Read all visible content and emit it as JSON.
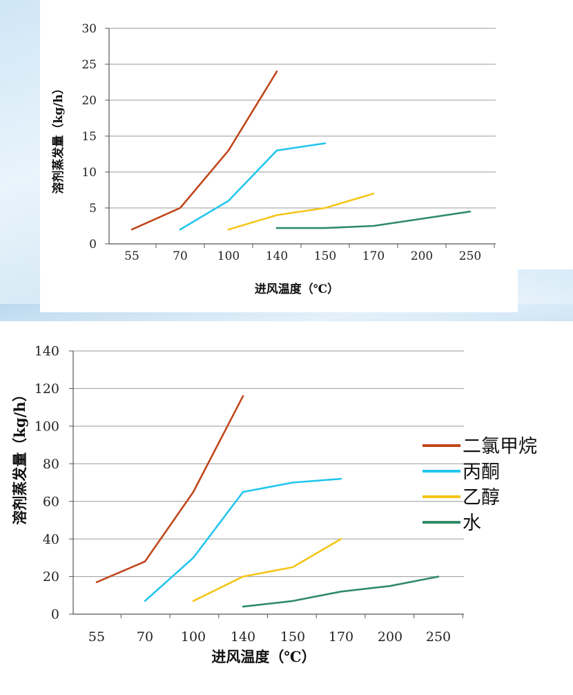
{
  "colors": {
    "background_light": "#e3f0fa",
    "background_stripe": "#c7e0f3",
    "gridline": "#9a9a9a",
    "axis": "#555555"
  },
  "chart_data": [
    {
      "type": "line",
      "categories": [
        "55",
        "70",
        "100",
        "140",
        "150",
        "170",
        "200",
        "250"
      ],
      "xlabel": "进风温度（℃）",
      "ylabel": "溶剂蒸发量（kg/h）",
      "ylim": [
        0,
        30
      ],
      "yticks": [
        0,
        5,
        10,
        15,
        20,
        25,
        30
      ],
      "grid": true,
      "legend": null,
      "series": [
        {
          "name": "二氯甲烷",
          "color": "#c0461a",
          "points": [
            [
              0,
              2
            ],
            [
              1,
              5
            ],
            [
              2,
              13
            ],
            [
              3,
              24
            ]
          ]
        },
        {
          "name": "丙酮",
          "color": "#22c5ee",
          "points": [
            [
              1,
              2
            ],
            [
              2,
              6
            ],
            [
              3,
              13
            ],
            [
              4,
              14
            ]
          ]
        },
        {
          "name": "乙醇",
          "color": "#f5c518",
          "points": [
            [
              2,
              2
            ],
            [
              3,
              4
            ],
            [
              4,
              5
            ],
            [
              5,
              7
            ]
          ]
        },
        {
          "name": "水",
          "color": "#2e8b67",
          "points": [
            [
              3,
              2.2
            ],
            [
              4,
              2.2
            ],
            [
              5,
              2.5
            ],
            [
              7,
              4.5
            ]
          ]
        }
      ]
    },
    {
      "type": "line",
      "categories": [
        "55",
        "70",
        "100",
        "140",
        "150",
        "170",
        "200",
        "250"
      ],
      "xlabel": "进风温度（℃）",
      "ylabel": "溶剂蒸发量（kg/h）",
      "ylim": [
        0,
        140
      ],
      "yticks": [
        0,
        20,
        40,
        60,
        80,
        100,
        120,
        140
      ],
      "grid": true,
      "legend": "right",
      "series": [
        {
          "name": "二氯甲烷",
          "color": "#c0461a",
          "points": [
            [
              0,
              17
            ],
            [
              1,
              28
            ],
            [
              2,
              65
            ],
            [
              3,
              116
            ]
          ]
        },
        {
          "name": "丙酮",
          "color": "#22c5ee",
          "points": [
            [
              1,
              7
            ],
            [
              2,
              30
            ],
            [
              3,
              65
            ],
            [
              4,
              70
            ],
            [
              5,
              72
            ]
          ]
        },
        {
          "name": "乙醇",
          "color": "#f5c518",
          "points": [
            [
              2,
              7
            ],
            [
              3,
              20
            ],
            [
              4,
              25
            ],
            [
              5,
              40
            ]
          ]
        },
        {
          "name": "水",
          "color": "#2e8b67",
          "points": [
            [
              3,
              4
            ],
            [
              4,
              7
            ],
            [
              5,
              12
            ],
            [
              6,
              15
            ],
            [
              7,
              20
            ]
          ]
        }
      ]
    }
  ]
}
